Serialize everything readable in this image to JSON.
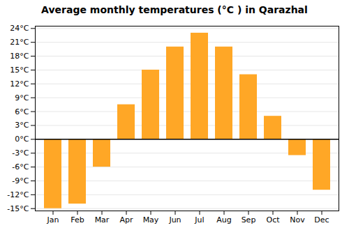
{
  "chart_data": {
    "type": "bar",
    "title": "Average monthly temperatures (°C ) in Qarazhal",
    "categories": [
      "Jan",
      "Feb",
      "Mar",
      "Apr",
      "May",
      "Jun",
      "Jul",
      "Aug",
      "Sep",
      "Oct",
      "Nov",
      "Dec"
    ],
    "values": [
      -15,
      -14,
      -6,
      7.5,
      15,
      20,
      23,
      20,
      14,
      5,
      -3.5,
      -11
    ],
    "color": "#FFA726",
    "ylim": [
      -15.5,
      24.5
    ],
    "yticks": [
      {
        "value": -15,
        "label": "-15°C"
      },
      {
        "value": -12,
        "label": "-12°C"
      },
      {
        "value": -9,
        "label": "-9°C"
      },
      {
        "value": -6,
        "label": "-6°C"
      },
      {
        "value": -3,
        "label": "-3°C"
      },
      {
        "value": 0,
        "label": "0°C"
      },
      {
        "value": 3,
        "label": "3°C"
      },
      {
        "value": 6,
        "label": "6°C"
      },
      {
        "value": 9,
        "label": "9°C"
      },
      {
        "value": 12,
        "label": "12°C"
      },
      {
        "value": 15,
        "label": "15°C"
      },
      {
        "value": 18,
        "label": "18°C"
      },
      {
        "value": 21,
        "label": "21°C"
      },
      {
        "value": 24,
        "label": "24°C"
      }
    ],
    "grid": true
  }
}
